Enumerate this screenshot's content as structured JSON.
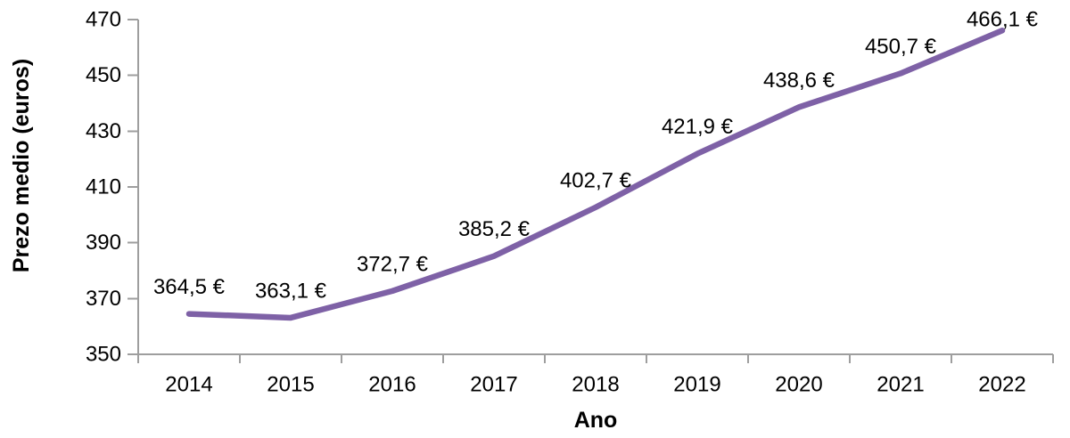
{
  "chart_data": {
    "type": "line",
    "title": "",
    "categories": [
      "2014",
      "2015",
      "2016",
      "2017",
      "2018",
      "2019",
      "2020",
      "2021",
      "2022"
    ],
    "values": [
      364.5,
      363.1,
      372.7,
      385.2,
      402.7,
      421.9,
      438.6,
      450.7,
      466.1
    ],
    "point_labels": [
      "364,5 €",
      "363,1 €",
      "372,7 €",
      "385,2 €",
      "402,7 €",
      "421,9 €",
      "438,6 €",
      "450,7 €",
      "466,1 €"
    ],
    "xlabel": "Ano",
    "ylabel": "Prezo medio (euros)",
    "ylim": [
      350,
      470
    ],
    "yticks": [
      350,
      370,
      390,
      410,
      430,
      450,
      470
    ],
    "grid": "off",
    "legend": "none",
    "line_color": "#7E61A6",
    "axis_color": "#9E9E9E",
    "text_color": "#000000"
  }
}
